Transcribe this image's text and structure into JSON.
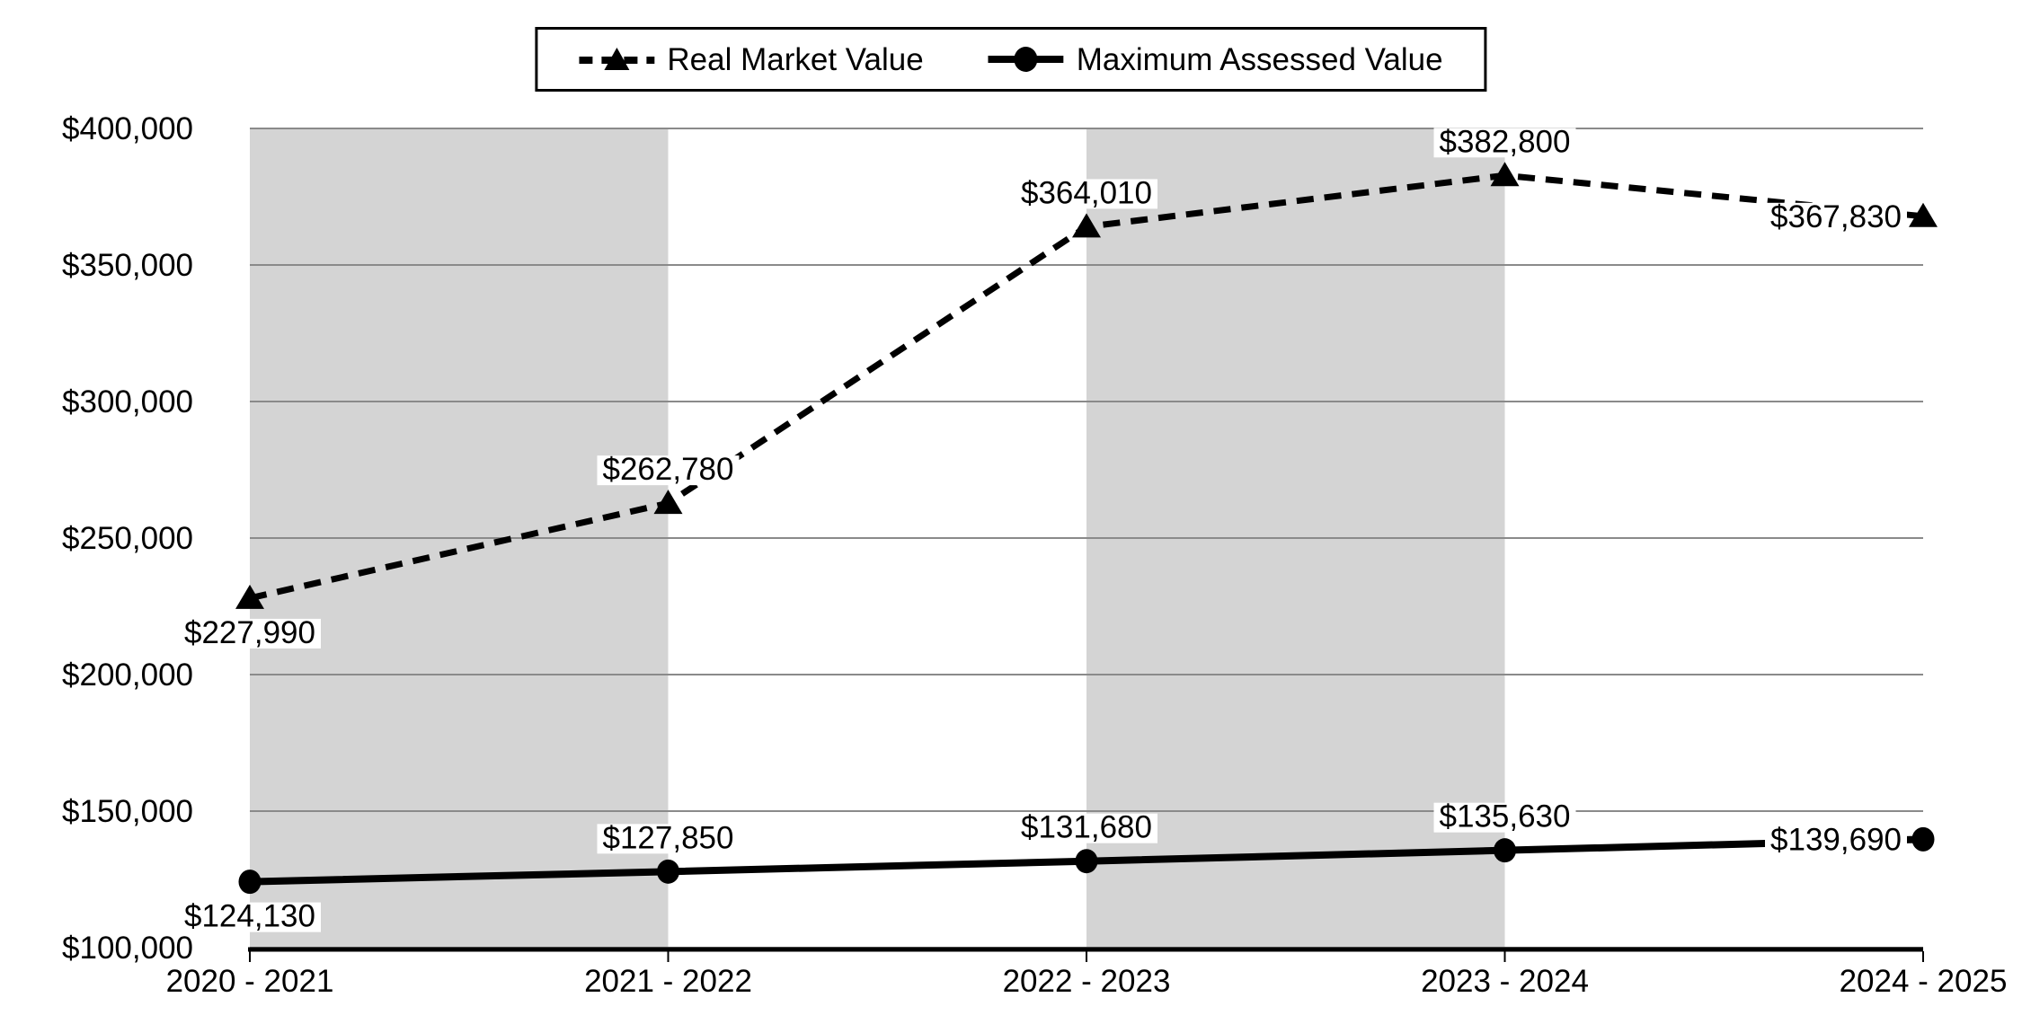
{
  "chart_data": {
    "type": "line",
    "title": "",
    "categories": [
      "2020 - 2021",
      "2021 - 2022",
      "2022 - 2023",
      "2023 - 2024",
      "2024 - 2025"
    ],
    "series": [
      {
        "name": "Real Market Value",
        "line_style": "dashed",
        "marker": "triangle",
        "values": [
          227990,
          262780,
          364010,
          382800,
          367830
        ],
        "labels": [
          "$227,990",
          "$262,780",
          "$364,010",
          "$382,800",
          "$367,830"
        ],
        "label_positions": [
          "below",
          "above",
          "above",
          "above",
          "left"
        ]
      },
      {
        "name": "Maximum Assessed Value",
        "line_style": "solid",
        "marker": "circle",
        "values": [
          124130,
          127850,
          131680,
          135630,
          139690
        ],
        "labels": [
          "$124,130",
          "$127,850",
          "$131,680",
          "$135,630",
          "$139,690"
        ],
        "label_positions": [
          "below",
          "above",
          "above",
          "above",
          "left"
        ]
      }
    ],
    "y_axis": {
      "min": 100000,
      "max": 400000,
      "step": 50000,
      "tick_labels": [
        "$100,000",
        "$150,000",
        "$200,000",
        "$250,000",
        "$300,000",
        "$350,000",
        "$400,000"
      ]
    },
    "x_axis": {
      "tick_labels": [
        "2020 - 2021",
        "2021 - 2022",
        "2022 - 2023",
        "2023 - 2024",
        "2024 - 2025"
      ]
    },
    "shaded_bands": {
      "category_spans": [
        [
          0,
          1
        ],
        [
          2,
          3
        ]
      ]
    },
    "legend": {
      "position": "top",
      "entries": [
        "Real Market Value",
        "Maximum Assessed Value"
      ]
    },
    "grid": true
  },
  "colors": {
    "series": "#000000",
    "gridline": "#8a8a8a",
    "band": "#d4d4d4",
    "axis": "#000000",
    "label_background": "#ffffff",
    "text": "#000000",
    "background": "#ffffff"
  }
}
